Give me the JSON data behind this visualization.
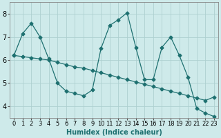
{
  "xlabel": "Humidex (Indice chaleur)",
  "xlim": [
    -0.5,
    23.5
  ],
  "ylim": [
    3.5,
    8.5
  ],
  "yticks": [
    4,
    5,
    6,
    7,
    8
  ],
  "xticks": [
    0,
    1,
    2,
    3,
    4,
    5,
    6,
    7,
    8,
    9,
    10,
    11,
    12,
    13,
    14,
    15,
    16,
    17,
    18,
    19,
    20,
    21,
    22,
    23
  ],
  "bg_color": "#ceeaea",
  "line_color": "#1e7070",
  "grid_color": "#aed0d0",
  "line1_y": [
    6.2,
    7.15,
    7.6,
    7.0,
    6.05,
    5.0,
    4.65,
    4.55,
    4.45,
    4.7,
    6.5,
    7.5,
    7.75,
    8.05,
    6.55,
    5.15,
    5.15,
    6.55,
    7.0,
    6.2,
    5.25,
    3.9,
    3.7,
    3.55
  ],
  "line2_y": [
    6.2,
    6.15,
    6.1,
    6.05,
    6.0,
    5.9,
    5.8,
    5.7,
    5.65,
    5.55,
    5.45,
    5.35,
    5.25,
    5.15,
    5.05,
    4.95,
    4.85,
    4.75,
    4.65,
    4.55,
    4.45,
    4.35,
    4.25,
    4.4
  ],
  "xlabel_color": "#1e7070",
  "xlabel_fontsize": 7,
  "tick_fontsize": 6,
  "linewidth": 0.9,
  "markersize": 2.5
}
